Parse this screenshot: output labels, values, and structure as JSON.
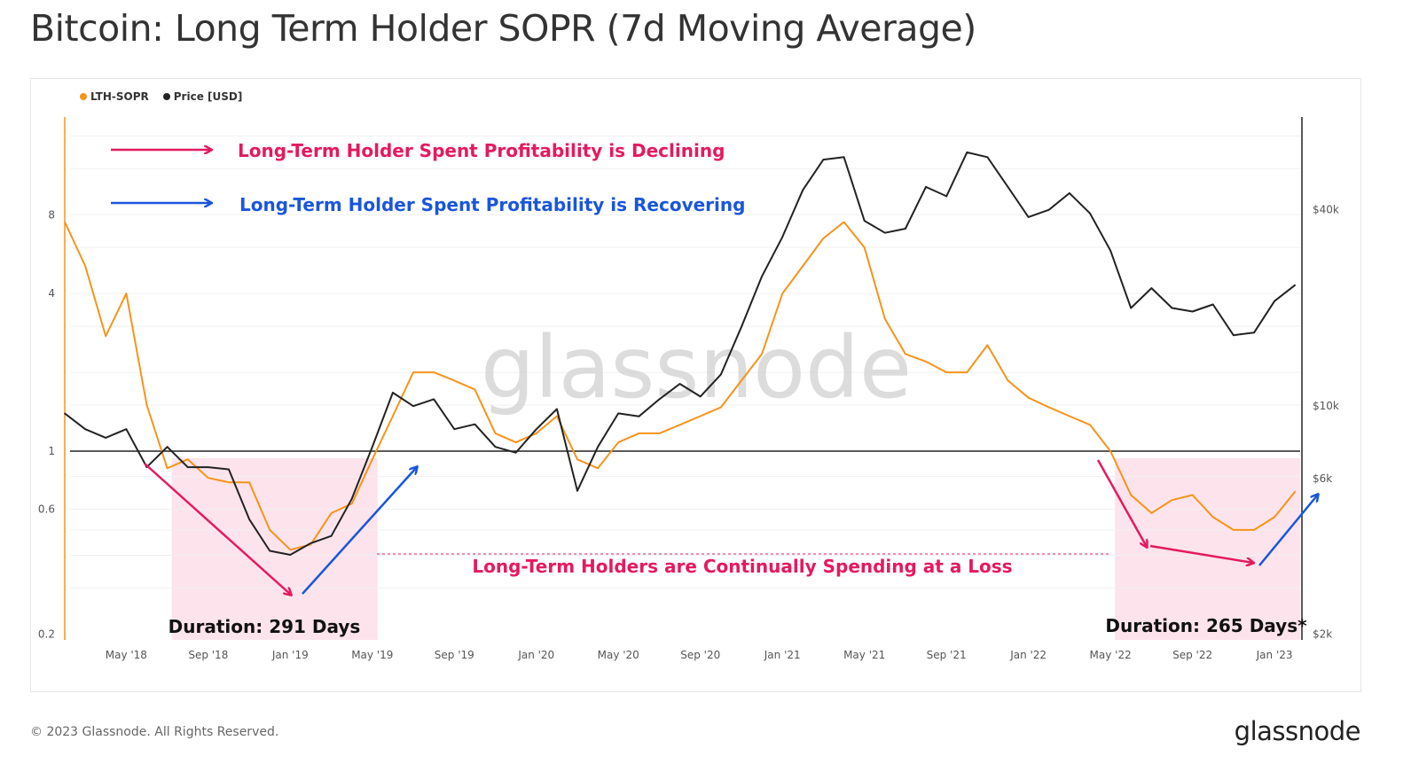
{
  "title": "Bitcoin: Long Term Holder SOPR (7d Moving Average)",
  "footer": "© 2023 Glassnode. All Rights Reserved.",
  "logo": "glassnode",
  "watermark": "glassnode",
  "annotations": {
    "declining": "Long-Term Holder Spent Profitability is Declining",
    "recovering": "Long-Term Holder Spent Profitability is Recovering",
    "loss": "Long-Term Holders are Continually Spending at a Loss",
    "duration1": "Duration: 291 Days",
    "duration2": "Duration: 265 Days*"
  },
  "colors": {
    "sopr": "#f7931a",
    "price": "#222222",
    "declining": "#e6195e",
    "recovering": "#1a56db",
    "shade": "#fde4ec"
  },
  "chart_data": {
    "type": "line",
    "title": "Bitcoin: Long Term Holder SOPR (7d Moving Average)",
    "legend": [
      "LTH-SOPR",
      "Price [USD]"
    ],
    "legend_position": "top-left",
    "x_ticks": [
      "May '18",
      "Sep '18",
      "Jan '19",
      "May '19",
      "Sep '19",
      "Jan '20",
      "May '20",
      "Sep '20",
      "Jan '21",
      "May '21",
      "Sep '21",
      "Jan '22",
      "May '22",
      "Sep '22",
      "Jan '23"
    ],
    "y_left": {
      "scale": "log",
      "ticks": [
        "0.2",
        "0.6",
        "1",
        "4",
        "8"
      ],
      "tick_values": [
        0.2,
        0.6,
        1,
        4,
        8
      ],
      "range": [
        0.19,
        18.9
      ]
    },
    "y_right": {
      "scale": "log",
      "ticks": [
        "$2k",
        "$6k",
        "$10k",
        "$40k"
      ],
      "tick_values": [
        2000,
        6000,
        10000,
        40000
      ],
      "range": [
        1920,
        77000
      ]
    },
    "reference_line": 1,
    "shaded_periods": [
      [
        "2018-07",
        "2019-05"
      ],
      [
        "2022-05",
        "2023-02"
      ]
    ],
    "x": [
      "2018-02",
      "2018-03",
      "2018-04",
      "2018-05",
      "2018-06",
      "2018-07",
      "2018-08",
      "2018-09",
      "2018-10",
      "2018-11",
      "2018-12",
      "2019-01",
      "2019-02",
      "2019-03",
      "2019-04",
      "2019-05",
      "2019-06",
      "2019-07",
      "2019-08",
      "2019-09",
      "2019-10",
      "2019-11",
      "2019-12",
      "2020-01",
      "2020-02",
      "2020-03",
      "2020-04",
      "2020-05",
      "2020-06",
      "2020-07",
      "2020-08",
      "2020-09",
      "2020-10",
      "2020-11",
      "2020-12",
      "2021-01",
      "2021-02",
      "2021-03",
      "2021-04",
      "2021-05",
      "2021-06",
      "2021-07",
      "2021-08",
      "2021-09",
      "2021-10",
      "2021-11",
      "2021-12",
      "2022-01",
      "2022-02",
      "2022-03",
      "2022-04",
      "2022-05",
      "2022-06",
      "2022-07",
      "2022-08",
      "2022-09",
      "2022-10",
      "2022-11",
      "2022-12",
      "2023-01",
      "2023-02"
    ],
    "series": [
      {
        "name": "LTH-SOPR",
        "axis": "left",
        "values": [
          7.5,
          5.1,
          2.75,
          4.0,
          1.5,
          0.86,
          0.93,
          0.79,
          0.76,
          0.76,
          0.5,
          0.42,
          0.44,
          0.58,
          0.63,
          0.93,
          1.36,
          2.0,
          2.0,
          1.86,
          1.72,
          1.17,
          1.08,
          1.17,
          1.36,
          0.93,
          0.86,
          1.08,
          1.17,
          1.17,
          1.26,
          1.36,
          1.47,
          1.86,
          2.35,
          4.0,
          5.1,
          6.5,
          7.5,
          6.0,
          3.2,
          2.35,
          2.2,
          2.0,
          2.0,
          2.54,
          1.86,
          1.6,
          1.47,
          1.36,
          1.26,
          1.0,
          0.68,
          0.58,
          0.65,
          0.68,
          0.56,
          0.5,
          0.5,
          0.56,
          0.7
        ]
      },
      {
        "name": "Price [USD]",
        "axis": "right",
        "values": [
          9500,
          8500,
          8000,
          8500,
          6500,
          7500,
          6500,
          6500,
          6400,
          4500,
          3600,
          3500,
          3800,
          4000,
          5200,
          7500,
          11000,
          10000,
          10500,
          8500,
          8800,
          7500,
          7200,
          8500,
          9800,
          5500,
          7500,
          9500,
          9300,
          10500,
          11700,
          10700,
          12500,
          17500,
          25000,
          33000,
          46000,
          57000,
          58000,
          37000,
          34000,
          35000,
          47000,
          44000,
          60000,
          58000,
          47000,
          38000,
          40000,
          45000,
          39000,
          30000,
          20000,
          23000,
          20000,
          19500,
          20500,
          16500,
          16800,
          21000,
          23500
        ]
      }
    ]
  }
}
